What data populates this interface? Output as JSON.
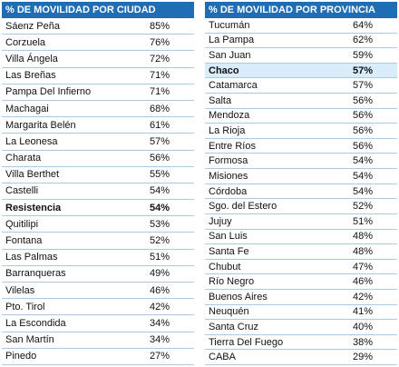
{
  "tables": [
    {
      "title": "% DE MOVILIDAD POR CIUDAD",
      "rows": [
        [
          "Sáenz Peña",
          "85%"
        ],
        [
          "Corzuela",
          "76%"
        ],
        [
          "Villa Ángela",
          "72%"
        ],
        [
          "Las Breñas",
          "71%"
        ],
        [
          "Pampa Del Infierno",
          "71%"
        ],
        [
          "Machagai",
          "68%"
        ],
        [
          "Margarita Belén",
          "61%"
        ],
        [
          "La Leonesa",
          "57%"
        ],
        [
          "Charata",
          "56%"
        ],
        [
          "Villa Berthet",
          "55%"
        ],
        [
          "Castelli",
          "54%"
        ],
        [
          "Resistencia",
          "54%"
        ],
        [
          "Quitilipi",
          "53%"
        ],
        [
          "Fontana",
          "52%"
        ],
        [
          "Las Palmas",
          "51%"
        ],
        [
          "Barranqueras",
          "49%"
        ],
        [
          "Vilelas",
          "46%"
        ],
        [
          "Pto. Tirol",
          "42%"
        ],
        [
          "La Escondida",
          "34%"
        ],
        [
          "San Martín",
          "34%"
        ],
        [
          "Pinedo",
          "27%"
        ]
      ],
      "bold_row": 11,
      "highlight_row": null
    },
    {
      "title": "% DE MOVILIDAD POR PROVINCIA",
      "rows": [
        [
          "Tucumán",
          "64%"
        ],
        [
          "La Pampa",
          "62%"
        ],
        [
          "San Juan",
          "59%"
        ],
        [
          "Chaco",
          "57%"
        ],
        [
          "Catamarca",
          "57%"
        ],
        [
          "Salta",
          "56%"
        ],
        [
          "Mendoza",
          "56%"
        ],
        [
          "La Rioja",
          "56%"
        ],
        [
          "Entre Ríos",
          "56%"
        ],
        [
          "Formosa",
          "54%"
        ],
        [
          "Misiones",
          "54%"
        ],
        [
          "Córdoba",
          "54%"
        ],
        [
          "Sgo. del Estero",
          "52%"
        ],
        [
          "Jujuy",
          "51%"
        ],
        [
          "San Luis",
          "48%"
        ],
        [
          "Santa Fe",
          "48%"
        ],
        [
          "Chubut",
          "47%"
        ],
        [
          "Río Negro",
          "46%"
        ],
        [
          "Buenos Aires",
          "42%"
        ],
        [
          "Neuquén",
          "41%"
        ],
        [
          "Santa Cruz",
          "40%"
        ],
        [
          "Tierra Del Fuego",
          "38%"
        ],
        [
          "CABA",
          "29%"
        ]
      ],
      "bold_row": 3,
      "highlight_row": 3
    }
  ]
}
